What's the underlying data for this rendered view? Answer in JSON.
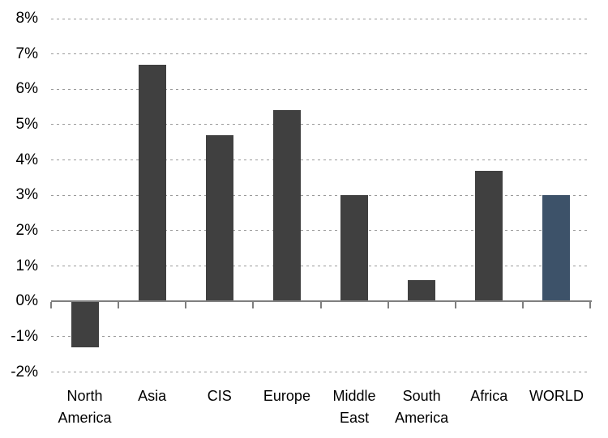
{
  "chart_data": {
    "type": "bar",
    "title": "",
    "xlabel": "",
    "ylabel": "",
    "categories": [
      "North\nAmerica",
      "Asia",
      "CIS",
      "Europe",
      "Middle\nEast",
      "South\nAmerica",
      "Africa",
      "WORLD"
    ],
    "values": [
      -1.3,
      6.7,
      4.7,
      5.4,
      3.0,
      0.6,
      3.7,
      3.0
    ],
    "bar_colors": [
      "#404040",
      "#404040",
      "#404040",
      "#404040",
      "#404040",
      "#404040",
      "#404040",
      "#3D5269"
    ],
    "highlight_category": "WORLD",
    "ylim": [
      -2,
      8
    ],
    "y_ticks": [
      {
        "value": 8,
        "label": "8%"
      },
      {
        "value": 7,
        "label": "7%"
      },
      {
        "value": 6,
        "label": "6%"
      },
      {
        "value": 5,
        "label": "5%"
      },
      {
        "value": 4,
        "label": "4%"
      },
      {
        "value": 3,
        "label": "3%"
      },
      {
        "value": 2,
        "label": "2%"
      },
      {
        "value": 1,
        "label": "1%"
      },
      {
        "value": 0,
        "label": "0%"
      },
      {
        "value": -1,
        "label": "-1%"
      },
      {
        "value": -2,
        "label": "-2%"
      }
    ],
    "grid": "horizontal-dashed",
    "legend": "none",
    "colors": {
      "bar_default": "#404040",
      "bar_highlight": "#3D5269",
      "gridline": "#9A9A9A",
      "axis_line": "#7F7F7F",
      "text": "#000000",
      "background": "#FFFFFF"
    }
  }
}
